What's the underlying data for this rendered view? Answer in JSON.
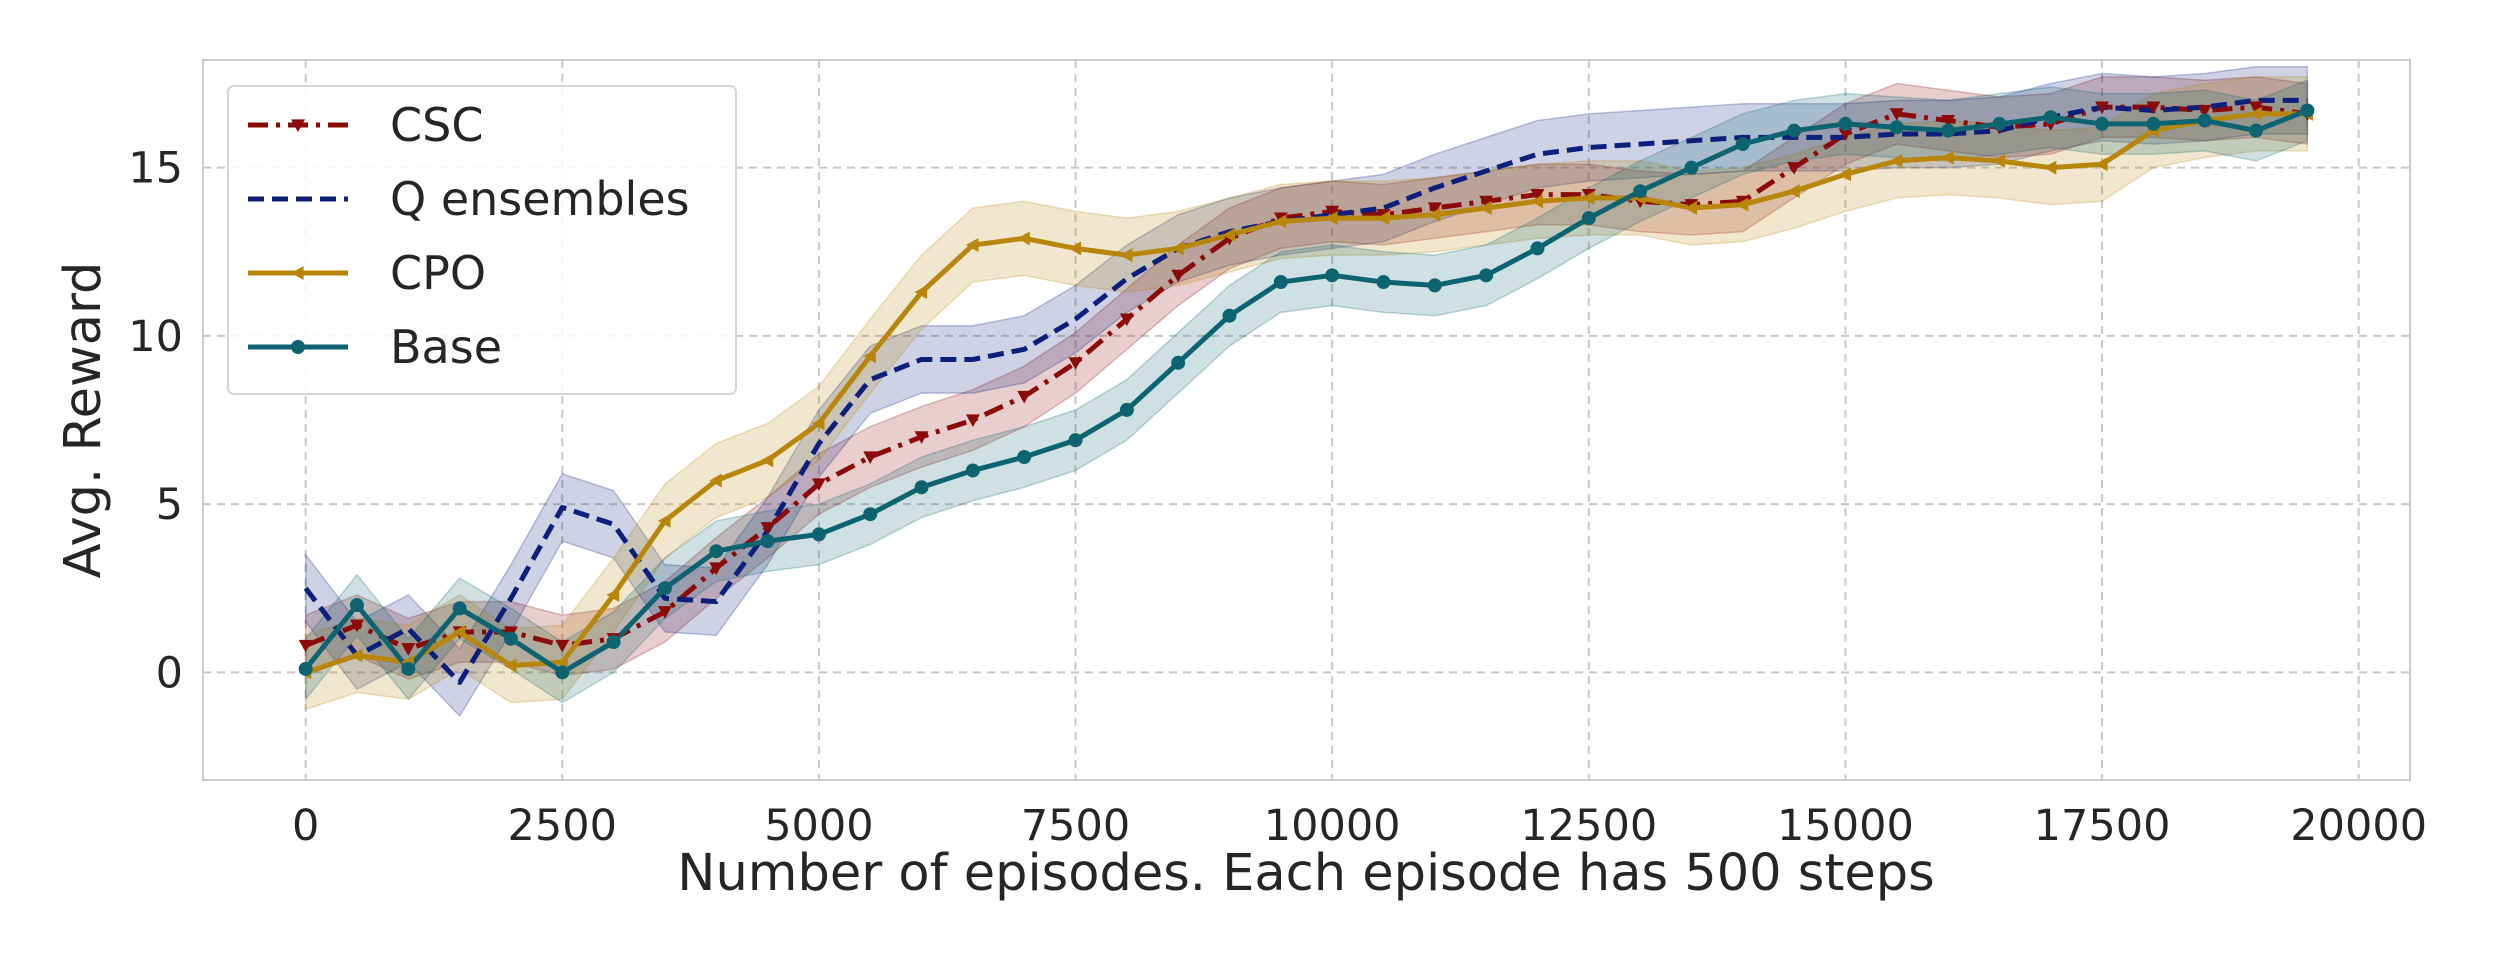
{
  "chart_data": {
    "type": "line",
    "title": "",
    "xlabel": "Number of episodes. Each episode has 500 steps",
    "ylabel": "Avg. Reward",
    "xlim": [
      -1000,
      20500
    ],
    "ylim": [
      -3.2,
      18.2
    ],
    "xticks": [
      0,
      2500,
      5000,
      7500,
      10000,
      12500,
      15000,
      17500,
      20000
    ],
    "xtick_labels": [
      "0",
      "2500",
      "5000",
      "7500",
      "10000",
      "12500",
      "15000",
      "17500",
      "20000"
    ],
    "yticks": [
      0,
      5,
      10,
      15
    ],
    "ytick_labels": [
      "0",
      "5",
      "10",
      "15"
    ],
    "grid": true,
    "legend_position": "top-left",
    "x": [
      0,
      500,
      1000,
      1500,
      2000,
      2500,
      3000,
      3500,
      4000,
      4500,
      5000,
      5500,
      6000,
      6500,
      7000,
      7500,
      8000,
      8500,
      9000,
      9500,
      10000,
      10500,
      11000,
      11500,
      12000,
      12500,
      13000,
      13500,
      14000,
      14500,
      15000,
      15500,
      16000,
      16500,
      17000,
      17500,
      18000,
      18500,
      19000,
      19500
    ],
    "series": [
      {
        "name": "CSC",
        "color": "#8b0a0a",
        "linestyle": "dashdot",
        "marker": "triangle-down",
        "values": [
          0.8,
          1.4,
          0.7,
          1.2,
          1.2,
          0.8,
          1.0,
          1.8,
          3.1,
          4.3,
          5.6,
          6.4,
          7.0,
          7.5,
          8.2,
          9.2,
          10.5,
          11.8,
          12.9,
          13.5,
          13.7,
          13.6,
          13.8,
          14.0,
          14.2,
          14.2,
          14.0,
          13.9,
          14.0,
          15.0,
          16.0,
          16.6,
          16.4,
          16.2,
          16.3,
          16.8,
          16.8,
          16.7,
          16.8,
          16.6
        ],
        "band": 0.9
      },
      {
        "name": "Q ensembles",
        "color": "#0c1f7a",
        "linestyle": "dashed",
        "marker": "none",
        "values": [
          2.5,
          0.5,
          1.3,
          -0.3,
          2.2,
          4.9,
          4.4,
          2.2,
          2.1,
          4.2,
          6.8,
          8.7,
          9.3,
          9.3,
          9.6,
          10.5,
          11.7,
          12.6,
          13.1,
          13.4,
          13.6,
          13.8,
          14.4,
          14.9,
          15.4,
          15.6,
          15.7,
          15.8,
          15.9,
          15.9,
          15.9,
          16.0,
          16.0,
          16.1,
          16.5,
          16.8,
          16.7,
          16.8,
          17.0,
          17.0
        ],
        "band": 1.0
      },
      {
        "name": "CPO",
        "color": "#b8860b",
        "linestyle": "solid",
        "marker": "triangle-left",
        "values": [
          0.0,
          0.5,
          0.3,
          1.2,
          0.2,
          0.3,
          2.3,
          4.5,
          5.7,
          6.3,
          7.4,
          9.4,
          11.3,
          12.7,
          12.9,
          12.6,
          12.4,
          12.6,
          13.0,
          13.4,
          13.5,
          13.5,
          13.6,
          13.8,
          14.0,
          14.1,
          14.1,
          13.8,
          13.9,
          14.3,
          14.8,
          15.2,
          15.3,
          15.2,
          15.0,
          15.1,
          16.1,
          16.4,
          16.6,
          16.6
        ],
        "band": 1.1
      },
      {
        "name": "Base",
        "color": "#0d6470",
        "linestyle": "solid",
        "marker": "circle",
        "values": [
          0.1,
          2.0,
          0.1,
          1.9,
          1.0,
          0.0,
          0.9,
          2.5,
          3.6,
          3.9,
          4.1,
          4.7,
          5.5,
          6.0,
          6.4,
          6.9,
          7.8,
          9.2,
          10.6,
          11.6,
          11.8,
          11.6,
          11.5,
          11.8,
          12.6,
          13.5,
          14.3,
          15.0,
          15.7,
          16.1,
          16.3,
          16.2,
          16.1,
          16.3,
          16.5,
          16.3,
          16.3,
          16.4,
          16.1,
          16.7
        ],
        "band": 0.9
      }
    ]
  }
}
